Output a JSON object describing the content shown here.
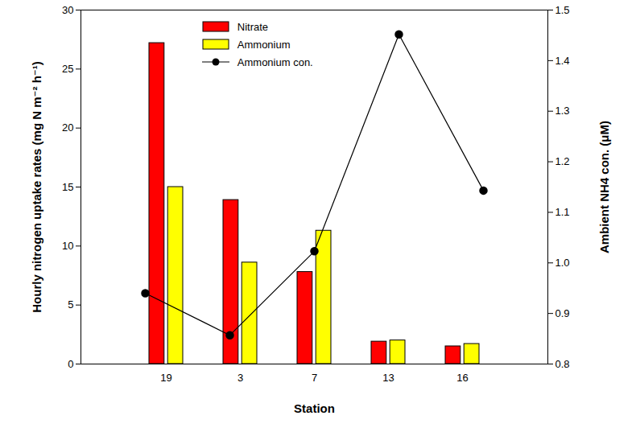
{
  "chart_data": {
    "type": "bar",
    "categories": [
      "19",
      "3",
      "7",
      "13",
      "16"
    ],
    "x_label": "Station",
    "y_label": "Hourly nitrogen uptake rates (mg N m⁻² h⁻¹)",
    "y2_label": "Ambient NH4 con. (μM)",
    "series": [
      {
        "name": "Nitrate",
        "type": "bar",
        "color": "#ff0000",
        "values": [
          27.2,
          13.9,
          7.8,
          1.9,
          1.5
        ]
      },
      {
        "name": "Ammonium",
        "type": "bar",
        "color": "#ffff00",
        "values": [
          15.0,
          8.6,
          11.3,
          2.0,
          1.7
        ]
      },
      {
        "name": "Ammonium con.",
        "type": "line",
        "axis": "y2",
        "color": "#000000",
        "marker": "circle",
        "values": [
          0.94,
          0.857,
          1.023,
          1.452,
          1.143
        ]
      }
    ],
    "ylim": [
      0,
      30
    ],
    "yticks": [
      0,
      5,
      10,
      15,
      20,
      25,
      30
    ],
    "y2lim": [
      0.8,
      1.5
    ],
    "y2ticks": [
      0.8,
      0.9,
      {
        "value": 1.0,
        "label": "1.0"
      },
      1.1,
      1.2,
      1.3,
      1.4,
      1.5
    ],
    "legend": "top"
  }
}
